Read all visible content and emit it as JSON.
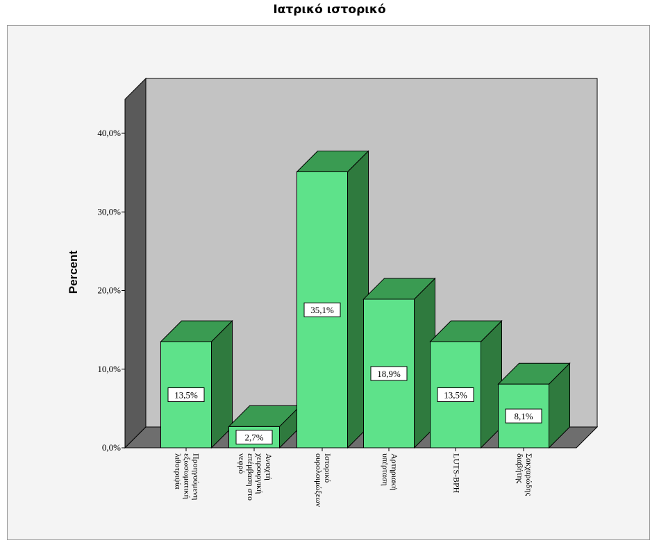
{
  "chart_data": {
    "type": "bar",
    "title": "Ιατρικό ιστορικό",
    "xlabel": "",
    "ylabel": "Percent",
    "ylim": [
      0,
      40
    ],
    "yticks": [
      "0,0%",
      "10,0%",
      "20,0%",
      "30,0%",
      "40,0%"
    ],
    "categories": [
      [
        "Προηγούμενη",
        "εξωσωματική",
        "λιθοτριψία"
      ],
      [
        "Ανοιχτή",
        "χειρουργική",
        "επέμβαση στο",
        "νεφρό"
      ],
      [
        "Ιστορικό",
        "ουρολοιμώξεων"
      ],
      [
        "Αρτηριακή",
        "υπέρταση"
      ],
      [
        "LUTS-BPH"
      ],
      [
        "Σακχαρώδης",
        "διαβήτης"
      ]
    ],
    "values": [
      13.5,
      2.7,
      35.1,
      18.9,
      13.5,
      8.1
    ],
    "data_labels": [
      "13,5%",
      "2,7%",
      "35,1%",
      "18,9%",
      "13,5%",
      "8,1%"
    ],
    "grid": false,
    "style": "3d",
    "colors": {
      "bar_front": "#5ee28a",
      "bar_top": "#3a9b52",
      "bar_side": "#2f7a3e",
      "back_wall": "#c3c3c3",
      "left_wall": "#5a5a5a",
      "floor": "#6e6e6e"
    }
  }
}
